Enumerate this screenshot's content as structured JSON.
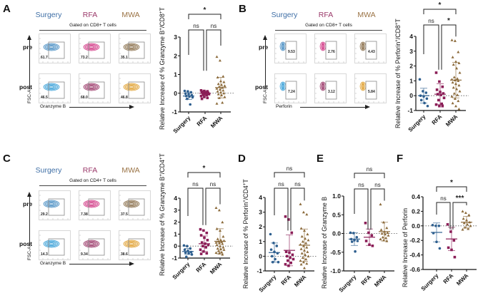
{
  "colors": {
    "surgery": "#2e5f8f",
    "surgery_flow": "#4a8fc4",
    "surgery_flow_post": "#3aa0d8",
    "rfa": "#8b1e57",
    "rfa_flow": "#d23a86",
    "rfa_flow_post": "#9c3a6a",
    "mwa": "#8b6a3a",
    "mwa_flow": "#8a6f4b",
    "mwa_flow_post": "#e0a030",
    "label_surgery": "#3f6fa6",
    "label_rfa": "#9b3a6a",
    "label_mwa": "#9a7345"
  },
  "flow_panels": [
    {
      "letter": "A",
      "groups": [
        "Surgery",
        "RFA",
        "MWA"
      ],
      "gate": "Gated on CD8+ T cells",
      "rows": [
        "pre",
        "post"
      ],
      "y_axis": "FSC-A",
      "x_axis": "Granzyme B",
      "percentages": {
        "pre": [
          "61.7",
          "73.2",
          "35.1"
        ],
        "post": [
          "46.5",
          "68.0",
          "46.8"
        ]
      },
      "gate_position": "left"
    },
    {
      "letter": "B",
      "groups": [
        "Surgery",
        "RFA",
        "MWA"
      ],
      "gate": "Gated on CD8+ T cells",
      "rows": [
        "pre",
        "post"
      ],
      "y_axis": "FSC-A",
      "x_axis": "Perforin",
      "percentages": {
        "pre": [
          "9.53",
          "2.76",
          "4.43"
        ],
        "post": [
          "7.24",
          "3.12",
          "5.84"
        ]
      },
      "gate_position": "inside"
    },
    {
      "letter": "C",
      "groups": [
        "Surgery",
        "RFA",
        "MWA"
      ],
      "gate": "Gated on CD4+ T cells",
      "rows": [
        "pre",
        "post"
      ],
      "y_axis": "FSC-A",
      "x_axis": "Granzyme B",
      "percentages": {
        "pre": [
          "29.2",
          "7.38",
          "37.5"
        ],
        "post": [
          "14.3",
          "9.34",
          "38.6"
        ]
      },
      "gate_position": "left"
    }
  ],
  "panel_letters": {
    "D": "D",
    "E": "E",
    "F": "F"
  },
  "chart_data": [
    {
      "id": "A",
      "type": "scatter",
      "title": "",
      "ylabel": "Relative Increase of % Granzyme B+/CD8+T",
      "ylabel_parts": [
        "Relative Increase of  % Granzyme B",
        "+",
        "/CD8",
        "+",
        "T"
      ],
      "categories": [
        "Surgery",
        "RFA",
        "MWA"
      ],
      "ylim": [
        -1,
        3
      ],
      "yticks": [
        -1,
        0,
        1,
        2,
        3
      ],
      "ytick_labels": [
        "-1",
        "0",
        "1",
        "2",
        "3"
      ],
      "reference_line": 0,
      "series": [
        {
          "name": "Surgery",
          "marker": "circle",
          "mean": -0.15,
          "sd": 0.18,
          "values": [
            0.12,
            0.1,
            0.05,
            -0.02,
            -0.05,
            -0.1,
            -0.15,
            -0.18,
            -0.22,
            -0.3,
            -0.6
          ]
        },
        {
          "name": "RFA",
          "marker": "square",
          "mean": 0.0,
          "sd": 0.1,
          "values": [
            0.15,
            0.12,
            0.1,
            0.08,
            0.05,
            0.02,
            0.0,
            -0.02,
            -0.05,
            -0.08,
            -0.1,
            -0.15,
            -0.2,
            -0.25,
            -0.3
          ]
        },
        {
          "name": "MWA",
          "marker": "triangle",
          "mean": 0.3,
          "sd": 0.55,
          "values": [
            1.95,
            1.75,
            0.9,
            0.85,
            0.65,
            0.6,
            0.5,
            0.45,
            0.4,
            0.35,
            0.3,
            0.25,
            0.2,
            0.15,
            0.1,
            0.05,
            0.0,
            -0.05,
            -0.1,
            -0.2,
            -0.25,
            -0.5,
            -0.55
          ]
        }
      ],
      "comparisons": [
        {
          "pair": [
            0,
            1
          ],
          "label": "ns",
          "level": 1
        },
        {
          "pair": [
            1,
            2
          ],
          "label": "ns",
          "level": 1
        },
        {
          "pair": [
            0,
            2
          ],
          "label": "*",
          "level": 2
        }
      ]
    },
    {
      "id": "B",
      "type": "scatter",
      "title": "",
      "ylabel": "Relative Increase of % Perforin+/CD8+T",
      "ylabel_parts": [
        "Relative Increase of % Perforin",
        "+",
        "/CD8",
        "+",
        "T"
      ],
      "categories": [
        "Surgery",
        "RFA",
        "MWA"
      ],
      "ylim": [
        -1,
        4
      ],
      "yticks": [
        -1,
        0,
        1,
        2,
        3,
        4
      ],
      "ytick_labels": [
        "-1",
        "0",
        "1",
        "2",
        "3",
        "4"
      ],
      "reference_line": 0,
      "series": [
        {
          "name": "Surgery",
          "marker": "circle",
          "mean": 0.0,
          "sd": 0.5,
          "values": [
            1.1,
            0.3,
            0.2,
            0.0,
            -0.05,
            -0.2,
            -0.3,
            -0.5,
            -0.7
          ]
        },
        {
          "name": "RFA",
          "marker": "square",
          "mean": 0.1,
          "sd": 0.7,
          "values": [
            1.55,
            0.95,
            0.6,
            0.4,
            0.25,
            0.15,
            0.1,
            0.05,
            -0.15,
            -0.3,
            -0.55,
            -0.6,
            -0.7,
            -0.7
          ]
        },
        {
          "name": "MWA",
          "marker": "triangle",
          "mean": 1.05,
          "sd": 1.2,
          "values": [
            3.75,
            3.7,
            2.95,
            2.6,
            2.3,
            2.2,
            2.1,
            1.85,
            1.55,
            1.25,
            1.15,
            1.1,
            1.05,
            1.0,
            0.9,
            0.8,
            0.7,
            0.55,
            0.45,
            0.3,
            0.15,
            0.05,
            -0.05,
            -0.2,
            -0.35,
            -0.5,
            -0.7,
            -0.9
          ]
        }
      ],
      "comparisons": [
        {
          "pair": [
            0,
            1
          ],
          "label": "ns",
          "level": 1
        },
        {
          "pair": [
            1,
            2
          ],
          "label": "*",
          "level": 1
        },
        {
          "pair": [
            0,
            2
          ],
          "label": "*",
          "level": 2
        }
      ]
    },
    {
      "id": "C",
      "type": "scatter",
      "title": "",
      "ylabel": "Relative Increase of % Granzyme B+/CD4+T",
      "ylabel_parts": [
        "Relative Increase of % Granzyme B",
        "+",
        "/CD4",
        "+",
        "T"
      ],
      "categories": [
        "Surgery",
        "RFA",
        "MWA"
      ],
      "ylim": [
        -1,
        4
      ],
      "yticks": [
        -1,
        0,
        1,
        2,
        3,
        4
      ],
      "ytick_labels": [
        "-1",
        "0",
        "1",
        "2",
        "3",
        "4"
      ],
      "reference_line": 0,
      "series": [
        {
          "name": "Surgery",
          "marker": "circle",
          "mean": -0.45,
          "sd": 0.25,
          "values": [
            0.05,
            0.0,
            -0.2,
            -0.3,
            -0.4,
            -0.5,
            -0.55,
            -0.6,
            -0.7,
            -0.9
          ]
        },
        {
          "name": "RFA",
          "marker": "square",
          "mean": 0.2,
          "sd": 0.65,
          "values": [
            1.4,
            1.3,
            1.1,
            0.9,
            0.7,
            0.5,
            0.3,
            0.2,
            0.1,
            0.0,
            -0.1,
            -0.3,
            -0.45,
            -0.6,
            -0.65
          ]
        },
        {
          "name": "MWA",
          "marker": "triangle",
          "mean": 0.4,
          "sd": 1.05,
          "values": [
            3.2,
            3.0,
            2.0,
            1.45,
            1.3,
            0.8,
            0.6,
            0.5,
            0.45,
            0.4,
            0.35,
            0.3,
            0.25,
            0.2,
            0.1,
            0.0,
            -0.1,
            -0.2,
            -0.25,
            -0.3,
            -0.4,
            -0.5,
            -0.55,
            -0.6,
            -0.7
          ]
        }
      ],
      "comparisons": [
        {
          "pair": [
            0,
            1
          ],
          "label": "ns",
          "level": 1
        },
        {
          "pair": [
            1,
            2
          ],
          "label": "ns",
          "level": 1
        },
        {
          "pair": [
            0,
            2
          ],
          "label": "*",
          "level": 2
        }
      ]
    },
    {
      "id": "D",
      "type": "scatter",
      "title": "",
      "ylabel": "Relative Increase of % Perforin+/CD4+T",
      "ylabel_parts": [
        "Relative Increase of % Perforin",
        "+",
        "/CD4",
        "+",
        "T"
      ],
      "categories": [
        "Surgery",
        "RFA",
        "MWA"
      ],
      "ylim": [
        -1,
        4
      ],
      "yticks": [
        -1,
        0,
        1,
        2,
        3,
        4
      ],
      "ytick_labels": [
        "-1",
        "0",
        "1",
        "2",
        "3",
        "4"
      ],
      "reference_line": 0,
      "series": [
        {
          "name": "Surgery",
          "marker": "circle",
          "mean": 0.25,
          "sd": 0.65,
          "values": [
            1.5,
            0.9,
            0.7,
            0.45,
            0.3,
            0.2,
            0.0,
            -0.2,
            -0.4,
            -0.4
          ]
        },
        {
          "name": "RFA",
          "marker": "square",
          "mean": 0.4,
          "sd": 1.05,
          "values": [
            2.7,
            2.5,
            1.6,
            0.3,
            0.25,
            0.1,
            0.0,
            -0.1,
            -0.2,
            -0.3,
            -0.45,
            -0.55,
            -0.65
          ]
        },
        {
          "name": "MWA",
          "marker": "triangle",
          "mean": 0.75,
          "sd": 1.1,
          "values": [
            3.55,
            3.0,
            2.85,
            1.9,
            1.75,
            1.5,
            1.35,
            1.2,
            1.1,
            1.0,
            0.9,
            0.8,
            0.7,
            0.6,
            0.5,
            0.4,
            0.3,
            0.2,
            0.1,
            0.0,
            -0.1,
            -0.2,
            -0.3,
            -0.4,
            -0.5,
            -0.55,
            -0.8
          ]
        }
      ],
      "comparisons": [
        {
          "pair": [
            0,
            1
          ],
          "label": "ns",
          "level": 1
        },
        {
          "pair": [
            1,
            2
          ],
          "label": "ns",
          "level": 1
        },
        {
          "pair": [
            0,
            2
          ],
          "label": "ns",
          "level": 2
        }
      ]
    },
    {
      "id": "E",
      "type": "scatter",
      "title": "",
      "ylabel": "Relative Increase of  Granzyme B",
      "ylabel_parts": [
        "Relative Increase of  Granzyme B"
      ],
      "categories": [
        "Surgery",
        "RFA",
        "MWA"
      ],
      "ylim": [
        -1.0,
        1.0
      ],
      "yticks": [
        -1.0,
        -0.5,
        0.0,
        0.5,
        1.0
      ],
      "ytick_labels": [
        "-1.0",
        "-0.5",
        "0.0",
        "0.5",
        "1.0"
      ],
      "reference_line": 0,
      "series": [
        {
          "name": "Surgery",
          "marker": "circle",
          "mean": -0.15,
          "sd": 0.17,
          "values": [
            0.02,
            0.01,
            -0.1,
            -0.15,
            -0.18,
            -0.2,
            -0.22,
            -0.48
          ]
        },
        {
          "name": "RFA",
          "marker": "square",
          "mean": -0.1,
          "sd": 0.22,
          "values": [
            0.28,
            0.02,
            -0.05,
            -0.2,
            -0.3,
            -0.33
          ]
        },
        {
          "name": "MWA",
          "marker": "triangle",
          "mean": 0.05,
          "sd": 0.25,
          "values": [
            0.78,
            0.3,
            0.15,
            0.1,
            0.05,
            0.02,
            0.0,
            -0.02,
            -0.05,
            -0.1,
            -0.12,
            -0.15,
            -0.18,
            -0.2
          ]
        }
      ],
      "comparisons": [
        {
          "pair": [
            0,
            1
          ],
          "label": "ns",
          "level": 1
        },
        {
          "pair": [
            1,
            2
          ],
          "label": "ns",
          "level": 1
        },
        {
          "pair": [
            0,
            2
          ],
          "label": "ns",
          "level": 2
        }
      ]
    },
    {
      "id": "F",
      "type": "scatter",
      "title": "",
      "ylabel": "Relative Increase of  Perforin",
      "ylabel_parts": [
        "Relative Increase of  Perforin"
      ],
      "categories": [
        "Surgery",
        "RFA",
        "MWA"
      ],
      "ylim": [
        -0.6,
        0.4
      ],
      "yticks": [
        -0.6,
        -0.4,
        -0.2,
        0.0,
        0.2,
        0.4
      ],
      "ytick_labels": [
        "-0.6",
        "-0.4",
        "-0.2",
        "0.0",
        "0.2",
        "0.4"
      ],
      "reference_line": 0,
      "series": [
        {
          "name": "Surgery",
          "marker": "circle",
          "mean": -0.09,
          "sd": 0.13,
          "values": [
            0.01,
            0.0,
            0.0,
            -0.1,
            -0.22,
            -0.31
          ]
        },
        {
          "name": "RFA",
          "marker": "square",
          "mean": -0.18,
          "sd": 0.16,
          "values": [
            0.02,
            -0.08,
            -0.2,
            -0.3,
            -0.33,
            -0.43
          ]
        },
        {
          "name": "MWA",
          "marker": "triangle",
          "mean": 0.05,
          "sd": 0.08,
          "values": [
            0.2,
            0.18,
            0.15,
            0.1,
            0.08,
            0.05,
            0.04,
            0.02,
            0.0,
            -0.02,
            -0.04,
            -0.05
          ]
        }
      ],
      "comparisons": [
        {
          "pair": [
            0,
            1
          ],
          "label": "ns",
          "level": 1
        },
        {
          "pair": [
            1,
            2
          ],
          "label": "***",
          "level": 1
        },
        {
          "pair": [
            0,
            2
          ],
          "label": "*",
          "level": 2
        }
      ]
    }
  ]
}
